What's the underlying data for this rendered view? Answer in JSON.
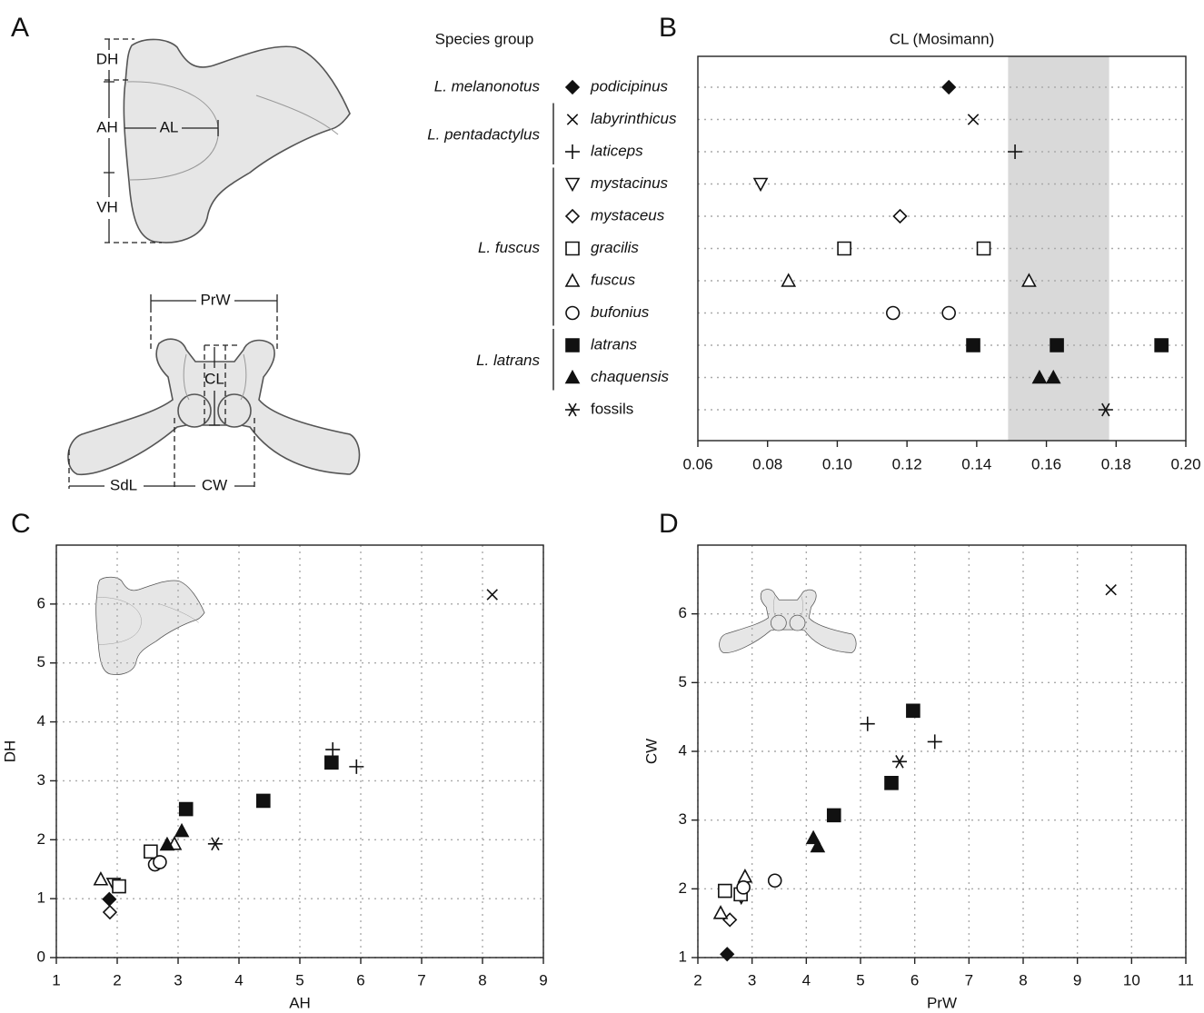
{
  "panel_labels": [
    "A",
    "B",
    "C",
    "D"
  ],
  "diagram": {
    "labels": [
      "DH",
      "AH",
      "AL",
      "VH",
      "PrW",
      "CL",
      "SdL",
      "CW"
    ]
  },
  "legend": {
    "title": "Species group",
    "groups": [
      {
        "label": "L. melanonotus",
        "species": [
          {
            "name": "podicipinus",
            "marker": "diamond-filled"
          }
        ]
      },
      {
        "label": "L. pentadactylus",
        "species": [
          {
            "name": "labyrinthicus",
            "marker": "x"
          },
          {
            "name": "laticeps",
            "marker": "plus"
          }
        ]
      },
      {
        "label": "L. fuscus",
        "species": [
          {
            "name": "mystacinus",
            "marker": "tri-down-open"
          },
          {
            "name": "mystaceus",
            "marker": "diamond-open"
          },
          {
            "name": "gracilis",
            "marker": "square-open"
          },
          {
            "name": "fuscus",
            "marker": "tri-open"
          },
          {
            "name": "bufonius",
            "marker": "circle-open"
          }
        ]
      },
      {
        "label": "L. latrans",
        "species": [
          {
            "name": "latrans",
            "marker": "square-filled"
          },
          {
            "name": "chaquensis",
            "marker": "tri-filled"
          }
        ]
      },
      {
        "species": [
          {
            "name": "fossils",
            "marker": "asterisk",
            "italic": false
          }
        ]
      }
    ]
  },
  "chart_data": [
    {
      "type": "dot",
      "title": "CL (Mosimann)",
      "xlim": [
        0.06,
        0.2
      ],
      "xticks": [
        0.06,
        0.08,
        {
          "value": 0.1,
          "label": "0.10"
        },
        0.12,
        0.14,
        0.16,
        0.18,
        {
          "value": 0.2,
          "label": "0.20"
        }
      ],
      "band": [
        0.149,
        0.178
      ],
      "band_color": "#d9d9d9",
      "series": [
        {
          "values": [
            0.132
          ]
        },
        {
          "values": [
            0.139
          ]
        },
        {
          "values": [
            0.151
          ]
        },
        {
          "values": [
            0.078
          ]
        },
        {
          "values": [
            0.118
          ]
        },
        {
          "values": [
            0.102,
            0.142
          ]
        },
        {
          "values": [
            0.086,
            0.155
          ]
        },
        {
          "values": [
            0.116,
            0.132
          ]
        },
        {
          "values": [
            0.139,
            0.163,
            0.193
          ]
        },
        {
          "values": [
            0.158,
            0.162
          ]
        },
        {
          "values": [
            0.177
          ]
        }
      ]
    },
    {
      "type": "scatter",
      "x_label": "AH",
      "y_label": "DH",
      "xlim": [
        1,
        9
      ],
      "ylim": [
        0,
        7
      ],
      "xticks": [
        1,
        2,
        3,
        4,
        5,
        6,
        7,
        8,
        9
      ],
      "yticks": [
        0,
        1,
        2,
        3,
        4,
        5,
        6
      ],
      "grid": true,
      "series": [
        {
          "x": [
            1.87
          ],
          "values": [
            0.99
          ]
        },
        {
          "x": [
            8.16
          ],
          "values": [
            6.16
          ]
        },
        {
          "x": [
            5.54,
            5.93
          ],
          "values": [
            3.53,
            3.24
          ]
        },
        {
          "x": [
            1.94
          ],
          "values": [
            1.25
          ]
        },
        {
          "x": [
            1.88
          ],
          "values": [
            0.77
          ]
        },
        {
          "x": [
            2.55,
            2.03
          ],
          "values": [
            1.8,
            1.21
          ]
        },
        {
          "x": [
            1.73,
            2.94
          ],
          "values": [
            1.33,
            1.93
          ]
        },
        {
          "x": [
            2.62,
            2.7
          ],
          "values": [
            1.58,
            1.62
          ]
        },
        {
          "x": [
            3.13,
            4.4,
            5.52
          ],
          "values": [
            2.52,
            2.66,
            3.31
          ]
        },
        {
          "x": [
            2.82,
            3.06
          ],
          "values": [
            1.92,
            2.15
          ]
        },
        {
          "x": [
            3.61
          ],
          "values": [
            1.93
          ]
        }
      ]
    },
    {
      "type": "scatter",
      "x_label": "PrW",
      "y_label": "CW",
      "xlim": [
        2,
        11
      ],
      "ylim": [
        1,
        7
      ],
      "xticks": [
        2,
        3,
        4,
        5,
        6,
        7,
        8,
        9,
        10,
        11
      ],
      "yticks": [
        1,
        2,
        3,
        4,
        5,
        6
      ],
      "grid": true,
      "series": [
        {
          "x": [
            2.54
          ],
          "values": [
            1.05
          ]
        },
        {
          "x": [
            9.62
          ],
          "values": [
            6.35
          ]
        },
        {
          "x": [
            5.13,
            6.37
          ],
          "values": [
            4.4,
            4.14
          ]
        },
        {
          "x": [
            2.8
          ],
          "values": [
            1.88
          ]
        },
        {
          "x": [
            2.59
          ],
          "values": [
            1.55
          ]
        },
        {
          "x": [
            2.5,
            2.79
          ],
          "values": [
            1.97,
            1.92
          ]
        },
        {
          "x": [
            2.42,
            2.87
          ],
          "values": [
            1.65,
            2.18
          ]
        },
        {
          "x": [
            2.84,
            3.42
          ],
          "values": [
            2.02,
            2.12
          ]
        },
        {
          "x": [
            5.97,
            5.57,
            4.51
          ],
          "values": [
            4.59,
            3.54,
            3.07
          ]
        },
        {
          "x": [
            4.13,
            4.21
          ],
          "values": [
            2.74,
            2.62
          ]
        },
        {
          "x": [
            5.72
          ],
          "values": [
            3.85
          ]
        }
      ]
    }
  ]
}
